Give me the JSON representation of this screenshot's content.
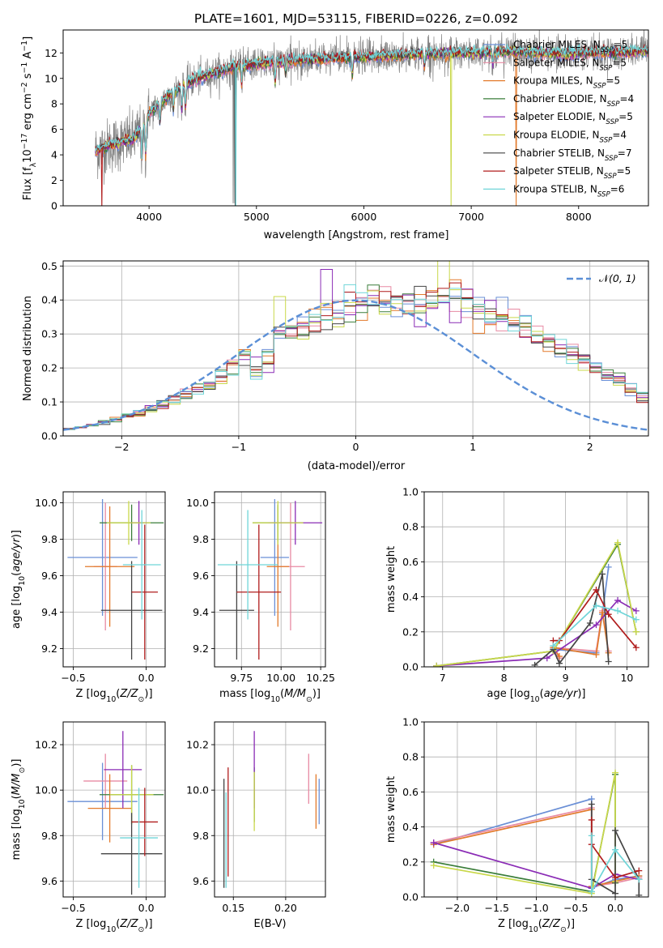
{
  "figure_title": "PLATE=1601, MJD=53115, FIBERID=0226, z=0.092",
  "colors": {
    "Chabrier MILES": "#6a8fd6",
    "Salpeter MILES": "#e88aa3",
    "Kroupa MILES": "#e37a2b",
    "Chabrier ELODIE": "#3a7d3a",
    "Salpeter ELODIE": "#8a2bb5",
    "Kroupa ELODIE": "#c9d84a",
    "Chabrier STELIB": "#444444",
    "Salpeter STELIB": "#b01c1c",
    "Kroupa STELIB": "#6fd5d8",
    "gaussian": "#5b8fd6",
    "grid": "#b0b0b0"
  },
  "chart_data": [
    {
      "id": "spectrum",
      "type": "line",
      "title": "PLATE=1601, MJD=53115, FIBERID=0226, z=0.092",
      "xlabel": "wavelength [Angstrom, rest frame]",
      "ylabel_parts": [
        "Flux [f",
        "λ",
        "10",
        "−17",
        " erg cm",
        "−2",
        " s",
        "−1",
        " A",
        "−1",
        "]"
      ],
      "xlim": [
        3200,
        8650
      ],
      "ylim": [
        0,
        13.8
      ],
      "xticks": [
        4000,
        5000,
        6000,
        7000,
        8000
      ],
      "yticks": [
        0,
        2,
        4,
        6,
        8,
        10,
        12
      ],
      "grid": false,
      "legend_position": "right",
      "legend": [
        {
          "label": "Chabrier MILES, N",
          "sub": "SSP",
          "suffix": "=5"
        },
        {
          "label": "Salpeter MILES, N",
          "sub": "SSP",
          "suffix": "=5"
        },
        {
          "label": "Kroupa MILES, N",
          "sub": "SSP",
          "suffix": "=5"
        },
        {
          "label": "Chabrier ELODIE, N",
          "sub": "SSP",
          "suffix": "=4"
        },
        {
          "label": "Salpeter ELODIE, N",
          "sub": "SSP",
          "suffix": "=5"
        },
        {
          "label": "Kroupa ELODIE, N",
          "sub": "SSP",
          "suffix": "=4"
        },
        {
          "label": "Chabrier STELIB, N",
          "sub": "SSP",
          "suffix": "=7"
        },
        {
          "label": "Salpeter STELIB, N",
          "sub": "SSP",
          "suffix": "=5"
        },
        {
          "label": "Kroupa STELIB, N",
          "sub": "SSP",
          "suffix": "=6"
        }
      ],
      "continuum_nodes": [
        [
          3500,
          4.3
        ],
        [
          3700,
          4.9
        ],
        [
          3850,
          5.2
        ],
        [
          3950,
          6.2
        ],
        [
          4000,
          7.2
        ],
        [
          4200,
          8.8
        ],
        [
          4400,
          9.8
        ],
        [
          4600,
          10.4
        ],
        [
          4800,
          10.9
        ],
        [
          5000,
          11.1
        ],
        [
          5200,
          11.3
        ],
        [
          5500,
          11.5
        ],
        [
          5800,
          11.6
        ],
        [
          6100,
          11.7
        ],
        [
          6500,
          11.9
        ],
        [
          7000,
          12.0
        ],
        [
          7400,
          12.1
        ],
        [
          7800,
          11.9
        ],
        [
          8200,
          12.0
        ],
        [
          8600,
          12.1
        ]
      ]
    },
    {
      "id": "residuals",
      "type": "histogram",
      "xlabel": "(data-model)/error",
      "ylabel": "Normed distribution",
      "xlim": [
        -2.5,
        2.5
      ],
      "ylim": [
        0,
        0.515
      ],
      "xticks": [
        -2,
        -1,
        0,
        1,
        2
      ],
      "yticks": [
        0.0,
        0.1,
        0.2,
        0.3,
        0.4,
        0.5
      ],
      "grid": true,
      "legend_position": "top-right",
      "legend": "N(0,1)",
      "bin_start": -2.5,
      "bin_width": 0.1,
      "base_density": [
        0.02,
        0.025,
        0.032,
        0.04,
        0.05,
        0.058,
        0.068,
        0.078,
        0.092,
        0.11,
        0.126,
        0.138,
        0.15,
        0.172,
        0.213,
        0.242,
        0.19,
        0.222,
        0.285,
        0.312,
        0.312,
        0.33,
        0.352,
        0.368,
        0.38,
        0.39,
        0.405,
        0.398,
        0.392,
        0.38,
        0.392,
        0.398,
        0.41,
        0.395,
        0.4,
        0.385,
        0.372,
        0.35,
        0.332,
        0.31,
        0.295,
        0.28,
        0.262,
        0.24,
        0.225,
        0.2,
        0.175,
        0.16,
        0.14,
        0.118,
        0.1,
        0.085,
        0.07,
        0.06,
        0.05,
        0.04,
        0.034,
        0.03,
        0.025,
        0.022
      ]
    },
    {
      "id": "age_vs_Z",
      "type": "errorbar",
      "xlabel": "Z [log10(Z/Z⊙)]",
      "ylabel": "age  [log10(age/yr)]",
      "xlim": [
        -0.57,
        0.13
      ],
      "ylim": [
        9.1,
        10.06
      ],
      "xticks": [
        -0.5,
        0.0
      ],
      "xtick_labels": [
        "−0.5",
        "0.0"
      ],
      "yticks": [
        9.2,
        9.4,
        9.6,
        9.8,
        10.0
      ],
      "grid": true,
      "points": [
        {
          "series": "Chabrier MILES",
          "x": -0.3,
          "xerr": 0.24,
          "y": 9.7,
          "yerr": 0.32
        },
        {
          "series": "Salpeter MILES",
          "x": -0.28,
          "xerr": 0.08,
          "y": 9.65,
          "yerr": 0.35
        },
        {
          "series": "Kroupa MILES",
          "x": -0.25,
          "xerr": 0.17,
          "y": 9.65,
          "yerr": 0.33
        },
        {
          "series": "Chabrier ELODIE",
          "x": -0.1,
          "xerr": 0.22,
          "y": 9.89,
          "yerr": 0.1
        },
        {
          "series": "Salpeter ELODIE",
          "x": -0.05,
          "xerr": 0.06,
          "y": 9.89,
          "yerr": 0.12
        },
        {
          "series": "Kroupa ELODIE",
          "x": -0.12,
          "xerr": 0.15,
          "y": 9.89,
          "yerr": 0.12
        },
        {
          "series": "Chabrier STELIB",
          "x": -0.1,
          "xerr": 0.21,
          "y": 9.41,
          "yerr": 0.27
        },
        {
          "series": "Salpeter STELIB",
          "x": -0.01,
          "xerr": 0.09,
          "y": 9.51,
          "yerr": 0.37
        },
        {
          "series": "Kroupa STELIB",
          "x": -0.03,
          "xerr": 0.13,
          "y": 9.66,
          "yerr": 0.3
        }
      ]
    },
    {
      "id": "age_vs_mass",
      "type": "errorbar",
      "xlabel": "mass [log10(M/M⊙)]",
      "ylabel": "",
      "xlim": [
        9.58,
        10.28
      ],
      "ylim": [
        9.1,
        10.06
      ],
      "xticks": [
        9.75,
        10.0,
        10.25
      ],
      "xtick_labels": [
        "9.75",
        "10.00",
        "10.25"
      ],
      "yticks": [
        9.2,
        9.4,
        9.6,
        9.8,
        10.0
      ],
      "grid": true,
      "points": [
        {
          "series": "Chabrier MILES",
          "x": 9.96,
          "xerr": 0.09,
          "y": 9.7,
          "yerr": 0.32
        },
        {
          "series": "Salpeter MILES",
          "x": 10.06,
          "xerr": 0.09,
          "y": 9.65,
          "yerr": 0.35
        },
        {
          "series": "Kroupa MILES",
          "x": 9.98,
          "xerr": 0.07,
          "y": 9.65,
          "yerr": 0.33
        },
        {
          "series": "Chabrier ELODIE",
          "x": 9.98,
          "xerr": 0.16,
          "y": 9.89,
          "yerr": 0.1
        },
        {
          "series": "Salpeter ELODIE",
          "x": 10.09,
          "xerr": 0.17,
          "y": 9.89,
          "yerr": 0.12
        },
        {
          "series": "Kroupa ELODIE",
          "x": 9.98,
          "xerr": 0.16,
          "y": 9.89,
          "yerr": 0.12
        },
        {
          "series": "Chabrier STELIB",
          "x": 9.72,
          "xerr": 0.11,
          "y": 9.41,
          "yerr": 0.27
        },
        {
          "series": "Salpeter STELIB",
          "x": 9.86,
          "xerr": 0.14,
          "y": 9.51,
          "yerr": 0.37
        },
        {
          "series": "Kroupa STELIB",
          "x": 9.79,
          "xerr": 0.19,
          "y": 9.66,
          "yerr": 0.3
        }
      ]
    },
    {
      "id": "weight_vs_age",
      "type": "line",
      "xlabel": "age  [log10(age/yr)]",
      "ylabel": "mass weight",
      "xlim": [
        6.7,
        10.35
      ],
      "ylim": [
        0,
        1.0
      ],
      "xticks": [
        7,
        8,
        9,
        10
      ],
      "yticks": [
        0.0,
        0.2,
        0.4,
        0.6,
        0.8,
        1.0
      ],
      "grid": true,
      "series": [
        {
          "name": "Chabrier MILES",
          "x": [
            8.9,
            8.8,
            9.5,
            9.6,
            9.7
          ],
          "y": [
            0.05,
            0.1,
            0.08,
            0.3,
            0.57
          ]
        },
        {
          "name": "Salpeter MILES",
          "x": [
            8.9,
            8.8,
            9.5,
            9.6,
            9.7
          ],
          "y": [
            0.05,
            0.11,
            0.09,
            0.32,
            0.09
          ]
        },
        {
          "name": "Kroupa MILES",
          "x": [
            8.9,
            8.8,
            9.5,
            9.6,
            9.7
          ],
          "y": [
            0.06,
            0.11,
            0.07,
            0.31,
            0.08
          ]
        },
        {
          "name": "Chabrier ELODIE",
          "x": [
            6.9,
            8.8,
            9.85,
            10.15
          ],
          "y": [
            0.005,
            0.09,
            0.7,
            0.2
          ]
        },
        {
          "name": "Salpeter ELODIE",
          "x": [
            6.9,
            8.7,
            9.5,
            9.85,
            10.15
          ],
          "y": [
            0.005,
            0.05,
            0.24,
            0.38,
            0.32
          ]
        },
        {
          "name": "Kroupa ELODIE",
          "x": [
            6.9,
            8.8,
            9.85,
            10.15
          ],
          "y": [
            0.005,
            0.09,
            0.71,
            0.2
          ]
        },
        {
          "name": "Chabrier STELIB",
          "x": [
            8.5,
            8.8,
            8.9,
            9.4,
            9.6,
            9.7
          ],
          "y": [
            0.01,
            0.1,
            0.02,
            0.25,
            0.53,
            0.03
          ]
        },
        {
          "name": "Salpeter STELIB",
          "x": [
            8.8,
            8.9,
            9.5,
            9.7,
            10.15
          ],
          "y": [
            0.15,
            0.15,
            0.44,
            0.3,
            0.11
          ]
        },
        {
          "name": "Kroupa STELIB",
          "x": [
            8.8,
            9.5,
            9.85,
            10.15
          ],
          "y": [
            0.12,
            0.35,
            0.32,
            0.27
          ]
        }
      ]
    },
    {
      "id": "mass_vs_Z",
      "type": "errorbar",
      "xlabel": "Z [log10(Z/Z⊙)]",
      "ylabel": "mass [log10(M/M⊙)]",
      "xlim": [
        -0.57,
        0.13
      ],
      "ylim": [
        9.53,
        10.3
      ],
      "xticks": [
        -0.5,
        0.0
      ],
      "xtick_labels": [
        "−0.5",
        "0.0"
      ],
      "yticks": [
        9.6,
        9.8,
        10.0,
        10.2
      ],
      "grid": true,
      "points": [
        {
          "series": "Chabrier MILES",
          "x": -0.3,
          "xerr": 0.24,
          "y": 9.95,
          "yerr": 0.17
        },
        {
          "series": "Salpeter MILES",
          "x": -0.28,
          "xerr": 0.15,
          "y": 10.04,
          "yerr": 0.12
        },
        {
          "series": "Kroupa MILES",
          "x": -0.25,
          "xerr": 0.15,
          "y": 9.92,
          "yerr": 0.15
        },
        {
          "series": "Chabrier ELODIE",
          "x": -0.1,
          "xerr": 0.22,
          "y": 9.98,
          "yerr": 0.13
        },
        {
          "series": "Salpeter ELODIE",
          "x": -0.16,
          "xerr": 0.13,
          "y": 10.09,
          "yerr": 0.17
        },
        {
          "series": "Kroupa ELODIE",
          "x": -0.1,
          "xerr": 0.15,
          "y": 9.98,
          "yerr": 0.13
        },
        {
          "series": "Chabrier STELIB",
          "x": -0.1,
          "xerr": 0.21,
          "y": 9.72,
          "yerr": 0.18
        },
        {
          "series": "Salpeter STELIB",
          "x": -0.01,
          "xerr": 0.09,
          "y": 9.86,
          "yerr": 0.15
        },
        {
          "series": "Kroupa STELIB",
          "x": -0.05,
          "xerr": 0.13,
          "y": 9.79,
          "yerr": 0.22
        }
      ]
    },
    {
      "id": "mass_vs_ebv",
      "type": "errorbar",
      "xlabel": "E(B-V)",
      "ylabel": "",
      "xlim": [
        0.132,
        0.238
      ],
      "ylim": [
        9.53,
        10.3
      ],
      "xticks": [
        0.15,
        0.2
      ],
      "xtick_labels": [
        "0.15",
        "0.20"
      ],
      "yticks": [
        9.6,
        9.8,
        10.0,
        10.2
      ],
      "grid": true,
      "points": [
        {
          "series": "Chabrier MILES",
          "x": 0.232,
          "y": 9.95,
          "yerr": 0.1
        },
        {
          "series": "Salpeter MILES",
          "x": 0.222,
          "y": 10.05,
          "yerr": 0.11
        },
        {
          "series": "Kroupa MILES",
          "x": 0.229,
          "y": 9.95,
          "yerr": 0.12
        },
        {
          "series": "Chabrier ELODIE",
          "x": 0.17,
          "y": 9.98,
          "yerr": 0.12
        },
        {
          "series": "Salpeter ELODIE",
          "x": 0.17,
          "y": 10.09,
          "yerr": 0.17
        },
        {
          "series": "Kroupa ELODIE",
          "x": 0.17,
          "y": 9.95,
          "yerr": 0.13
        },
        {
          "series": "Chabrier STELIB",
          "x": 0.141,
          "y": 9.81,
          "yerr": 0.24
        },
        {
          "series": "Salpeter STELIB",
          "x": 0.145,
          "y": 9.86,
          "yerr": 0.24
        },
        {
          "series": "Kroupa STELIB",
          "x": 0.143,
          "y": 9.78,
          "yerr": 0.21
        }
      ]
    },
    {
      "id": "weight_vs_Z",
      "type": "line",
      "xlabel": "Z [log10(Z/Z⊙)]",
      "ylabel": "mass weight",
      "xlim": [
        -2.42,
        0.42
      ],
      "ylim": [
        0,
        1.0
      ],
      "xticks": [
        -2.0,
        -1.5,
        -1.0,
        -0.5,
        0.0
      ],
      "xtick_labels": [
        "−2.0",
        "−1.5",
        "−1.0",
        "−0.5",
        "0.0"
      ],
      "yticks": [
        0.0,
        0.2,
        0.4,
        0.6,
        0.8,
        1.0
      ],
      "grid": true,
      "series": [
        {
          "name": "Chabrier MILES",
          "x": [
            -2.3,
            -0.3,
            -0.3,
            0.0,
            0.3
          ],
          "y": [
            0.3,
            0.56,
            0.05,
            0.1,
            0.12
          ]
        },
        {
          "name": "Salpeter MILES",
          "x": [
            -2.3,
            -0.3,
            -0.3,
            0.0,
            0.3
          ],
          "y": [
            0.31,
            0.51,
            0.06,
            0.08,
            0.11
          ]
        },
        {
          "name": "Kroupa MILES",
          "x": [
            -2.3,
            -0.3,
            -0.3,
            0.0,
            0.3
          ],
          "y": [
            0.3,
            0.5,
            0.06,
            0.09,
            0.12
          ]
        },
        {
          "name": "Chabrier ELODIE",
          "x": [
            -2.3,
            -0.3,
            0.0,
            0.0
          ],
          "y": [
            0.2,
            0.03,
            0.7,
            0.08
          ]
        },
        {
          "name": "Salpeter ELODIE",
          "x": [
            -2.3,
            -0.3,
            0.0,
            0.3
          ],
          "y": [
            0.31,
            0.05,
            0.13,
            0.1
          ]
        },
        {
          "name": "Kroupa ELODIE",
          "x": [
            -2.3,
            -0.3,
            0.0,
            0.0
          ],
          "y": [
            0.18,
            0.02,
            0.71,
            0.09
          ]
        },
        {
          "name": "Chabrier STELIB",
          "x": [
            -0.3,
            -0.3,
            0.0,
            0.0,
            0.3,
            0.3
          ],
          "y": [
            0.53,
            0.1,
            0.02,
            0.38,
            0.1,
            0.01
          ]
        },
        {
          "name": "Salpeter STELIB",
          "x": [
            -0.3,
            -0.3,
            0.0,
            0.3
          ],
          "y": [
            0.44,
            0.3,
            0.11,
            0.15
          ]
        },
        {
          "name": "Kroupa STELIB",
          "x": [
            -0.3,
            -0.3,
            0.0,
            0.3
          ],
          "y": [
            0.35,
            0.03,
            0.27,
            0.1
          ]
        }
      ]
    }
  ]
}
